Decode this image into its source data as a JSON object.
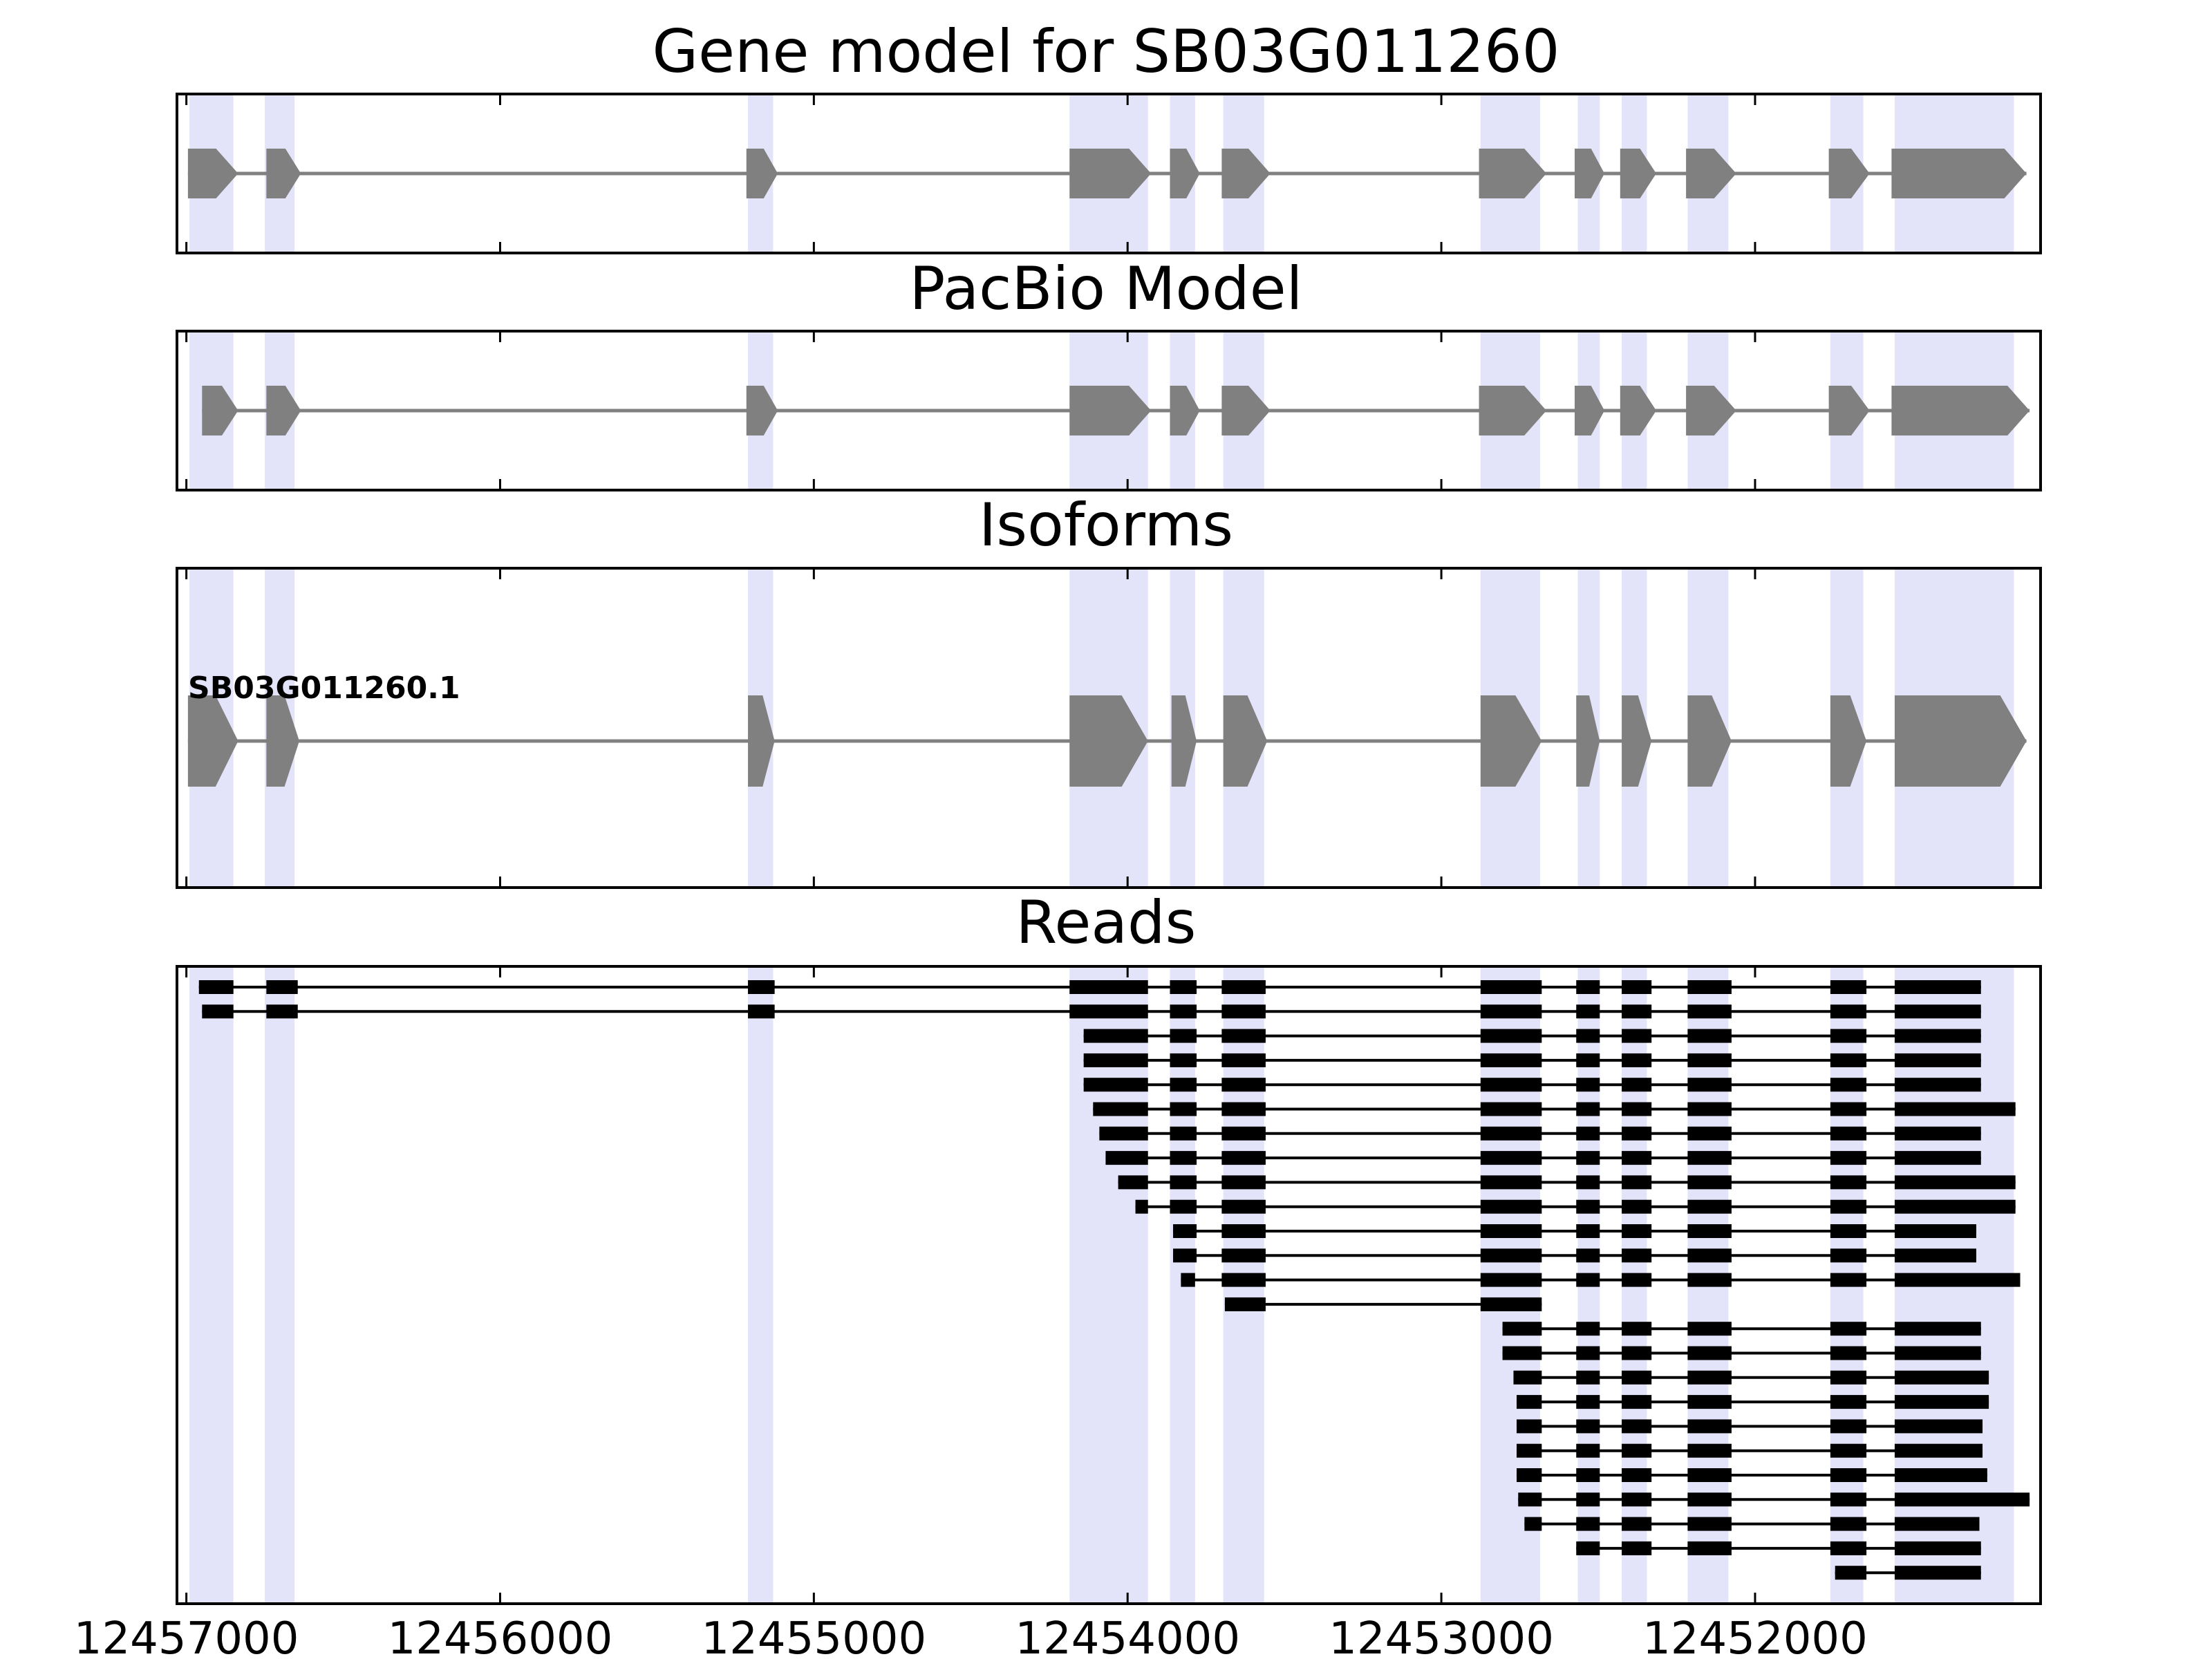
{
  "chart_data": {
    "type": "gene_structure_tracks",
    "x_axis": {
      "direction": "descending",
      "xlim": [
        12457030,
        12451090
      ],
      "ticks": [
        12457000,
        12456000,
        12455000,
        12454000,
        12453000,
        12452000
      ],
      "tick_labels": [
        "12457000",
        "12456000",
        "12455000",
        "12454000",
        "12453000",
        "12452000"
      ]
    },
    "highlight_color": "#e3e3fa",
    "feature_color": "#808080",
    "read_color": "#000000",
    "highlight_regions": [
      [
        12456990,
        12456850
      ],
      [
        12456750,
        12456655
      ],
      [
        12455210,
        12455130
      ],
      [
        12454185,
        12453935
      ],
      [
        12453865,
        12453785
      ],
      [
        12453695,
        12453565
      ],
      [
        12452875,
        12452685
      ],
      [
        12452565,
        12452495
      ],
      [
        12452425,
        12452345
      ],
      [
        12452215,
        12452085
      ],
      [
        12451760,
        12451655
      ],
      [
        12451555,
        12451175
      ]
    ],
    "panels": [
      {
        "title": "Gene model for SB03G011260",
        "kind": "gene_model",
        "exons": [
          [
            12456995,
            12456835
          ],
          [
            12456745,
            12456635
          ],
          [
            12455215,
            12455115
          ],
          [
            12454185,
            12453925
          ],
          [
            12453865,
            12453770
          ],
          [
            12453700,
            12453545
          ],
          [
            12452880,
            12452665
          ],
          [
            12452575,
            12452480
          ],
          [
            12452430,
            12452315
          ],
          [
            12452220,
            12452060
          ],
          [
            12451765,
            12451635
          ],
          [
            12451565,
            12451135
          ]
        ]
      },
      {
        "title": "PacBio Model",
        "kind": "gene_model",
        "exons": [
          [
            12456950,
            12456835
          ],
          [
            12456745,
            12456635
          ],
          [
            12455215,
            12455115
          ],
          [
            12454185,
            12453925
          ],
          [
            12453865,
            12453770
          ],
          [
            12453700,
            12453545
          ],
          [
            12452880,
            12452665
          ],
          [
            12452575,
            12452480
          ],
          [
            12452430,
            12452315
          ],
          [
            12452220,
            12452060
          ],
          [
            12451765,
            12451635
          ],
          [
            12451565,
            12451125
          ]
        ]
      },
      {
        "title": "Isoforms",
        "kind": "isoforms",
        "isoform_name": "SB03G011260.1",
        "exons": [
          [
            12456995,
            12456835
          ],
          [
            12456745,
            12456640
          ],
          [
            12455210,
            12455125
          ],
          [
            12454185,
            12453935
          ],
          [
            12453860,
            12453780
          ],
          [
            12453695,
            12453555
          ],
          [
            12452875,
            12452680
          ],
          [
            12452570,
            12452495
          ],
          [
            12452425,
            12452330
          ],
          [
            12452215,
            12452075
          ],
          [
            12451760,
            12451645
          ],
          [
            12451555,
            12451135
          ]
        ]
      },
      {
        "title": "Reads",
        "kind": "reads",
        "reads": [
          [
            [
              12456960,
              12456850
            ],
            [
              12456745,
              12456645
            ],
            [
              12455210,
              12455125
            ],
            [
              12454185,
              12453935
            ],
            [
              12453865,
              12453780
            ],
            [
              12453700,
              12453560
            ],
            [
              12452875,
              12452680
            ],
            [
              12452570,
              12452495
            ],
            [
              12452425,
              12452330
            ],
            [
              12452215,
              12452075
            ],
            [
              12451760,
              12451645
            ],
            [
              12451555,
              12451280
            ]
          ],
          [
            [
              12456950,
              12456850
            ],
            [
              12456745,
              12456645
            ],
            [
              12455210,
              12455125
            ],
            [
              12454185,
              12453935
            ],
            [
              12453865,
              12453780
            ],
            [
              12453700,
              12453560
            ],
            [
              12452875,
              12452680
            ],
            [
              12452570,
              12452495
            ],
            [
              12452425,
              12452330
            ],
            [
              12452215,
              12452075
            ],
            [
              12451760,
              12451645
            ],
            [
              12451555,
              12451280
            ]
          ],
          [
            [
              12454140,
              12453935
            ],
            [
              12453865,
              12453780
            ],
            [
              12453700,
              12453560
            ],
            [
              12452875,
              12452680
            ],
            [
              12452570,
              12452495
            ],
            [
              12452425,
              12452330
            ],
            [
              12452215,
              12452075
            ],
            [
              12451760,
              12451645
            ],
            [
              12451555,
              12451280
            ]
          ],
          [
            [
              12454140,
              12453935
            ],
            [
              12453865,
              12453780
            ],
            [
              12453700,
              12453560
            ],
            [
              12452875,
              12452680
            ],
            [
              12452570,
              12452495
            ],
            [
              12452425,
              12452330
            ],
            [
              12452215,
              12452075
            ],
            [
              12451760,
              12451645
            ],
            [
              12451555,
              12451280
            ]
          ],
          [
            [
              12454140,
              12453935
            ],
            [
              12453865,
              12453780
            ],
            [
              12453700,
              12453560
            ],
            [
              12452875,
              12452680
            ],
            [
              12452570,
              12452495
            ],
            [
              12452425,
              12452330
            ],
            [
              12452215,
              12452075
            ],
            [
              12451760,
              12451645
            ],
            [
              12451555,
              12451280
            ]
          ],
          [
            [
              12454110,
              12453935
            ],
            [
              12453865,
              12453780
            ],
            [
              12453700,
              12453560
            ],
            [
              12452875,
              12452680
            ],
            [
              12452570,
              12452495
            ],
            [
              12452425,
              12452330
            ],
            [
              12452215,
              12452075
            ],
            [
              12451760,
              12451645
            ],
            [
              12451555,
              12451170
            ]
          ],
          [
            [
              12454090,
              12453935
            ],
            [
              12453865,
              12453780
            ],
            [
              12453700,
              12453560
            ],
            [
              12452875,
              12452680
            ],
            [
              12452570,
              12452495
            ],
            [
              12452425,
              12452330
            ],
            [
              12452215,
              12452075
            ],
            [
              12451760,
              12451645
            ],
            [
              12451555,
              12451280
            ]
          ],
          [
            [
              12454070,
              12453935
            ],
            [
              12453865,
              12453780
            ],
            [
              12453700,
              12453560
            ],
            [
              12452875,
              12452680
            ],
            [
              12452570,
              12452495
            ],
            [
              12452425,
              12452330
            ],
            [
              12452215,
              12452075
            ],
            [
              12451760,
              12451645
            ],
            [
              12451555,
              12451280
            ]
          ],
          [
            [
              12454030,
              12453935
            ],
            [
              12453865,
              12453780
            ],
            [
              12453700,
              12453560
            ],
            [
              12452875,
              12452680
            ],
            [
              12452570,
              12452495
            ],
            [
              12452425,
              12452330
            ],
            [
              12452215,
              12452075
            ],
            [
              12451760,
              12451645
            ],
            [
              12451555,
              12451170
            ]
          ],
          [
            [
              12453975,
              12453935
            ],
            [
              12453865,
              12453780
            ],
            [
              12453700,
              12453560
            ],
            [
              12452875,
              12452680
            ],
            [
              12452570,
              12452495
            ],
            [
              12452425,
              12452330
            ],
            [
              12452215,
              12452075
            ],
            [
              12451760,
              12451645
            ],
            [
              12451555,
              12451170
            ]
          ],
          [
            [
              12453855,
              12453780
            ],
            [
              12453700,
              12453560
            ],
            [
              12452875,
              12452680
            ],
            [
              12452570,
              12452495
            ],
            [
              12452425,
              12452330
            ],
            [
              12452215,
              12452075
            ],
            [
              12451760,
              12451645
            ],
            [
              12451555,
              12451295
            ]
          ],
          [
            [
              12453855,
              12453780
            ],
            [
              12453700,
              12453560
            ],
            [
              12452875,
              12452680
            ],
            [
              12452570,
              12452495
            ],
            [
              12452425,
              12452330
            ],
            [
              12452215,
              12452075
            ],
            [
              12451760,
              12451645
            ],
            [
              12451555,
              12451295
            ]
          ],
          [
            [
              12453830,
              12453785
            ],
            [
              12453700,
              12453560
            ],
            [
              12452875,
              12452680
            ],
            [
              12452570,
              12452495
            ],
            [
              12452425,
              12452330
            ],
            [
              12452215,
              12452075
            ],
            [
              12451760,
              12451645
            ],
            [
              12451555,
              12451155
            ]
          ],
          [
            [
              12453690,
              12453560
            ],
            [
              12452875,
              12452680
            ]
          ],
          [
            [
              12452805,
              12452680
            ],
            [
              12452570,
              12452495
            ],
            [
              12452425,
              12452330
            ],
            [
              12452215,
              12452075
            ],
            [
              12451760,
              12451645
            ],
            [
              12451555,
              12451280
            ]
          ],
          [
            [
              12452805,
              12452680
            ],
            [
              12452570,
              12452495
            ],
            [
              12452425,
              12452330
            ],
            [
              12452215,
              12452075
            ],
            [
              12451760,
              12451645
            ],
            [
              12451555,
              12451280
            ]
          ],
          [
            [
              12452770,
              12452680
            ],
            [
              12452570,
              12452495
            ],
            [
              12452425,
              12452330
            ],
            [
              12452215,
              12452075
            ],
            [
              12451760,
              12451645
            ],
            [
              12451555,
              12451255
            ]
          ],
          [
            [
              12452760,
              12452680
            ],
            [
              12452570,
              12452495
            ],
            [
              12452425,
              12452330
            ],
            [
              12452215,
              12452075
            ],
            [
              12451760,
              12451645
            ],
            [
              12451555,
              12451255
            ]
          ],
          [
            [
              12452760,
              12452680
            ],
            [
              12452570,
              12452495
            ],
            [
              12452425,
              12452330
            ],
            [
              12452215,
              12452075
            ],
            [
              12451760,
              12451645
            ],
            [
              12451555,
              12451275
            ]
          ],
          [
            [
              12452760,
              12452680
            ],
            [
              12452570,
              12452495
            ],
            [
              12452425,
              12452330
            ],
            [
              12452215,
              12452075
            ],
            [
              12451760,
              12451645
            ],
            [
              12451555,
              12451275
            ]
          ],
          [
            [
              12452760,
              12452680
            ],
            [
              12452570,
              12452495
            ],
            [
              12452425,
              12452330
            ],
            [
              12452215,
              12452075
            ],
            [
              12451760,
              12451645
            ],
            [
              12451555,
              12451260
            ]
          ],
          [
            [
              12452755,
              12452680
            ],
            [
              12452570,
              12452495
            ],
            [
              12452425,
              12452330
            ],
            [
              12452215,
              12452075
            ],
            [
              12451760,
              12451645
            ],
            [
              12451555,
              12451125
            ]
          ],
          [
            [
              12452735,
              12452680
            ],
            [
              12452570,
              12452495
            ],
            [
              12452425,
              12452330
            ],
            [
              12452215,
              12452075
            ],
            [
              12451760,
              12451645
            ],
            [
              12451555,
              12451285
            ]
          ],
          [
            [
              12452570,
              12452495
            ],
            [
              12452425,
              12452330
            ],
            [
              12452215,
              12452075
            ],
            [
              12451760,
              12451645
            ],
            [
              12451555,
              12451280
            ]
          ],
          [
            [
              12451745,
              12451645
            ],
            [
              12451555,
              12451280
            ]
          ]
        ]
      }
    ]
  }
}
